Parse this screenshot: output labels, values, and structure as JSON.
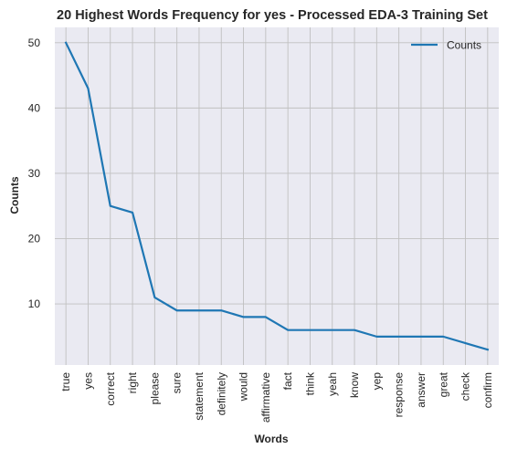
{
  "chart_data": {
    "type": "line",
    "title": "20 Highest Words Frequency for yes - Processed EDA-3 Training Set",
    "xlabel": "Words",
    "ylabel": "Counts",
    "categories": [
      "true",
      "yes",
      "correct",
      "right",
      "please",
      "sure",
      "statement",
      "definitely",
      "would",
      "affirmative",
      "fact",
      "think",
      "yeah",
      "know",
      "yep",
      "response",
      "answer",
      "great",
      "check",
      "confirm"
    ],
    "series": [
      {
        "name": "Counts",
        "values": [
          50,
          43,
          25,
          24,
          11,
          9,
          9,
          9,
          8,
          8,
          6,
          6,
          6,
          6,
          5,
          5,
          5,
          5,
          4,
          3
        ],
        "color": "#1f77b4"
      }
    ],
    "yticks": [
      10,
      20,
      30,
      40,
      50
    ],
    "ylim": [
      0.65,
      52.35
    ],
    "grid": true,
    "legend_position": "top-right",
    "colors": {
      "plot_background": "#eaeaf2",
      "grid": "#c0c0c0",
      "line": "#1f77b4"
    }
  }
}
